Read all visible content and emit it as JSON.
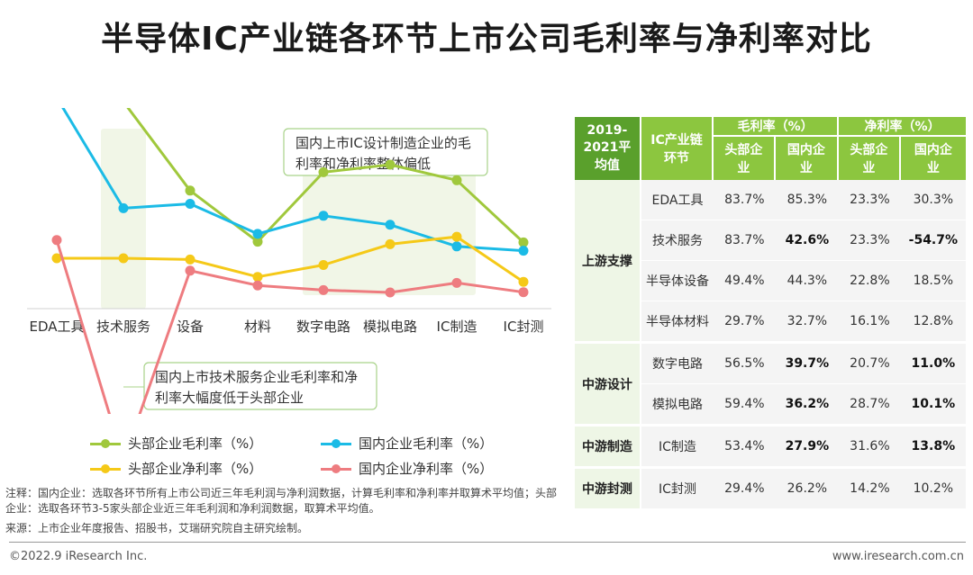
{
  "title": "半导体IC产业链各环节上市公司毛利率与净利率对比",
  "chart_data": {
    "type": "line",
    "categories": [
      "EDA工具",
      "技术服务",
      "设备",
      "材料",
      "数字电路",
      "模拟电路",
      "IC制造",
      "IC封测"
    ],
    "series": [
      {
        "name": "头部企业毛利率（%）",
        "color": "#a0c83c",
        "values": [
          83.7,
          83.7,
          49.4,
          29.7,
          56.5,
          59.4,
          53.4,
          29.4
        ]
      },
      {
        "name": "国内企业毛利率（%）",
        "color": "#1bbbe6",
        "values": [
          85.3,
          42.6,
          44.3,
          32.7,
          39.7,
          36.2,
          27.9,
          26.2
        ]
      },
      {
        "name": "头部企业净利率（%）",
        "color": "#f5c918",
        "values": [
          23.3,
          23.3,
          22.8,
          16.1,
          20.7,
          28.7,
          31.6,
          14.2
        ]
      },
      {
        "name": "国内企业净利率（%）",
        "color": "#ee7c80",
        "values": [
          30.3,
          -54.7,
          18.5,
          12.8,
          11.0,
          10.1,
          13.8,
          10.2
        ]
      }
    ],
    "annotations": [
      "国内上市IC设计制造企业的毛利率和净利率整体偏低",
      "国内上市技术服务企业毛利率和净利率大幅度低于头部企业"
    ],
    "ylim": [
      -60,
      95
    ],
    "grid": false,
    "legend_position": "bottom"
  },
  "table": {
    "corner": "2019-2021平均值",
    "chain_header": "IC产业链环节",
    "gross_header": "毛利率（%）",
    "net_header": "净利率（%）",
    "sub_headers": [
      "头部企业",
      "国内企业",
      "头部企业",
      "国内企业"
    ],
    "groups": [
      {
        "name": "上游支撑",
        "rows": [
          {
            "label": "EDA工具",
            "values": [
              "83.7%",
              "85.3%",
              "23.3%",
              "30.3%"
            ],
            "bold": [
              false,
              false,
              false,
              false
            ]
          },
          {
            "label": "技术服务",
            "values": [
              "83.7%",
              "42.6%",
              "23.3%",
              "-54.7%"
            ],
            "bold": [
              false,
              true,
              false,
              true
            ]
          },
          {
            "label": "半导体设备",
            "values": [
              "49.4%",
              "44.3%",
              "22.8%",
              "18.5%"
            ],
            "bold": [
              false,
              false,
              false,
              false
            ]
          },
          {
            "label": "半导体材料",
            "values": [
              "29.7%",
              "32.7%",
              "16.1%",
              "12.8%"
            ],
            "bold": [
              false,
              false,
              false,
              false
            ]
          }
        ]
      },
      {
        "name": "中游设计",
        "rows": [
          {
            "label": "数字电路",
            "values": [
              "56.5%",
              "39.7%",
              "20.7%",
              "11.0%"
            ],
            "bold": [
              false,
              true,
              false,
              true
            ]
          },
          {
            "label": "模拟电路",
            "values": [
              "59.4%",
              "36.2%",
              "28.7%",
              "10.1%"
            ],
            "bold": [
              false,
              true,
              false,
              true
            ]
          }
        ]
      },
      {
        "name": "中游制造",
        "rows": [
          {
            "label": "IC制造",
            "values": [
              "53.4%",
              "27.9%",
              "31.6%",
              "13.8%"
            ],
            "bold": [
              false,
              true,
              false,
              true
            ]
          }
        ]
      },
      {
        "name": "中游封测",
        "rows": [
          {
            "label": "IC封测",
            "values": [
              "29.4%",
              "26.2%",
              "14.2%",
              "10.2%"
            ],
            "bold": [
              false,
              false,
              false,
              false
            ]
          }
        ]
      }
    ]
  },
  "note": "注释：国内企业：选取各环节所有上市公司近三年毛利润与净利润数据，计算毛利率和净利率并取算术平均值；头部企业：选取各环节3-5家头部企业近三年毛利润和净利润数据，取算术平均值。",
  "source": "来源：上市企业年度报告、招股书，艾瑞研究院自主研究绘制。",
  "copyright": "©2022.9 iResearch Inc.",
  "website": "www.iresearch.com.cn"
}
